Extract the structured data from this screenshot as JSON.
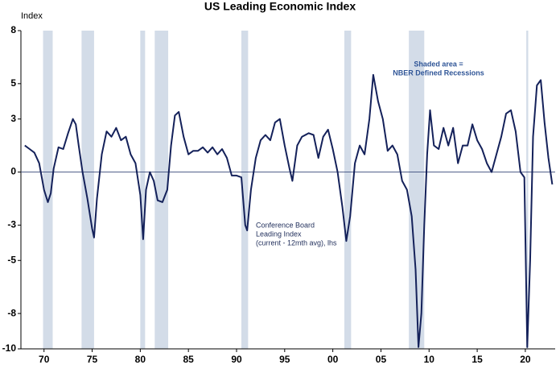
{
  "chart_data": {
    "type": "line",
    "title": "US Leading Economic Index",
    "y_label": "Index",
    "annotations": [
      {
        "lines": [
          "Shaded area =",
          "NBER Defined Recessions"
        ]
      },
      {
        "lines": [
          "Conference Board",
          "Leading Index",
          "(current  - 12mth avg), lhs"
        ]
      }
    ],
    "color": "#14215a",
    "recession_color": "#d3dce8",
    "recessions": [
      [
        1969.9,
        1970.9
      ],
      [
        1973.9,
        1975.2
      ],
      [
        1980.0,
        1980.5
      ],
      [
        1981.5,
        1982.9
      ],
      [
        1990.5,
        1991.2
      ],
      [
        2001.2,
        2001.9
      ],
      [
        2007.9,
        2009.5
      ],
      [
        2020.1,
        2020.3
      ]
    ],
    "xlim": [
      1967.6,
      2023.1
    ],
    "xticks": [
      {
        "value": 1970,
        "label": "70"
      },
      {
        "value": 1975,
        "label": "75"
      },
      {
        "value": 1980,
        "label": "80"
      },
      {
        "value": 1985,
        "label": "85"
      },
      {
        "value": 1990,
        "label": "90"
      },
      {
        "value": 1995,
        "label": "95"
      },
      {
        "value": 2000,
        "label": "00"
      },
      {
        "value": 2005,
        "label": "05"
      },
      {
        "value": 2010,
        "label": "10"
      },
      {
        "value": 2015,
        "label": "15"
      },
      {
        "value": 2020,
        "label": "20"
      }
    ],
    "ylim": [
      -10,
      8
    ],
    "yticks": [
      8,
      5,
      3,
      0,
      -3,
      -5,
      -8,
      -10
    ],
    "x": [
      1968.0,
      1968.5,
      1969.0,
      1969.5,
      1970.0,
      1970.4,
      1970.7,
      1971.0,
      1971.5,
      1972.0,
      1972.5,
      1973.0,
      1973.3,
      1973.6,
      1974.0,
      1974.5,
      1975.0,
      1975.2,
      1975.5,
      1976.0,
      1976.5,
      1977.0,
      1977.5,
      1978.0,
      1978.5,
      1979.0,
      1979.5,
      1980.0,
      1980.3,
      1980.6,
      1981.0,
      1981.4,
      1981.8,
      1982.3,
      1982.8,
      1983.2,
      1983.6,
      1984.0,
      1984.5,
      1985.0,
      1985.5,
      1986.0,
      1986.5,
      1987.0,
      1987.5,
      1988.0,
      1988.5,
      1989.0,
      1989.5,
      1990.0,
      1990.5,
      1990.9,
      1991.1,
      1991.5,
      1992.0,
      1992.5,
      1993.0,
      1993.5,
      1994.0,
      1994.5,
      1995.0,
      1995.5,
      1995.8,
      1996.3,
      1996.8,
      1997.5,
      1998.0,
      1998.5,
      1999.0,
      1999.5,
      2000.0,
      2000.5,
      2001.0,
      2001.4,
      2001.8,
      2002.3,
      2002.8,
      2003.3,
      2003.8,
      2004.2,
      2004.7,
      2005.2,
      2005.7,
      2006.2,
      2006.7,
      2007.2,
      2007.7,
      2008.2,
      2008.6,
      2008.9,
      2009.2,
      2009.5,
      2009.8,
      2010.1,
      2010.5,
      2011.0,
      2011.5,
      2012.0,
      2012.5,
      2013.0,
      2013.5,
      2014.0,
      2014.5,
      2015.0,
      2015.5,
      2016.0,
      2016.5,
      2017.0,
      2017.5,
      2018.0,
      2018.5,
      2019.0,
      2019.5,
      2019.9,
      2020.2,
      2020.5,
      2020.8,
      2021.2,
      2021.6,
      2022.0,
      2022.4,
      2022.8
    ],
    "values": [
      1.5,
      1.3,
      1.1,
      0.5,
      -1.0,
      -1.7,
      -1.2,
      0.2,
      1.4,
      1.3,
      2.2,
      3.0,
      2.7,
      1.5,
      0.0,
      -1.5,
      -3.2,
      -3.7,
      -1.5,
      1.0,
      2.3,
      2.0,
      2.5,
      1.8,
      2.0,
      1.0,
      0.5,
      -1.3,
      -3.8,
      -1.0,
      0.0,
      -0.5,
      -1.6,
      -1.7,
      -1.0,
      1.5,
      3.2,
      3.4,
      2.0,
      1.0,
      1.2,
      1.2,
      1.4,
      1.1,
      1.4,
      1.0,
      1.3,
      0.8,
      -0.2,
      -0.2,
      -0.3,
      -3.0,
      -3.3,
      -1.0,
      0.8,
      1.8,
      2.1,
      1.8,
      2.8,
      3.0,
      1.5,
      0.2,
      -0.5,
      1.5,
      2.0,
      2.2,
      2.1,
      0.8,
      2.0,
      2.4,
      1.3,
      0.0,
      -2.0,
      -3.9,
      -2.5,
      0.5,
      1.5,
      1.0,
      3.0,
      5.5,
      4.0,
      3.0,
      1.2,
      1.5,
      1.0,
      -0.5,
      -1.0,
      -2.5,
      -5.5,
      -9.9,
      -8.0,
      -3.0,
      1.0,
      3.5,
      1.5,
      1.3,
      2.5,
      1.5,
      2.5,
      0.5,
      1.5,
      1.5,
      2.7,
      1.8,
      1.3,
      0.5,
      0.0,
      1.0,
      2.0,
      3.3,
      3.5,
      2.3,
      0.0,
      -0.3,
      -9.9,
      -5.0,
      2.0,
      4.9,
      5.2,
      2.8,
      0.8,
      -0.7
    ]
  }
}
